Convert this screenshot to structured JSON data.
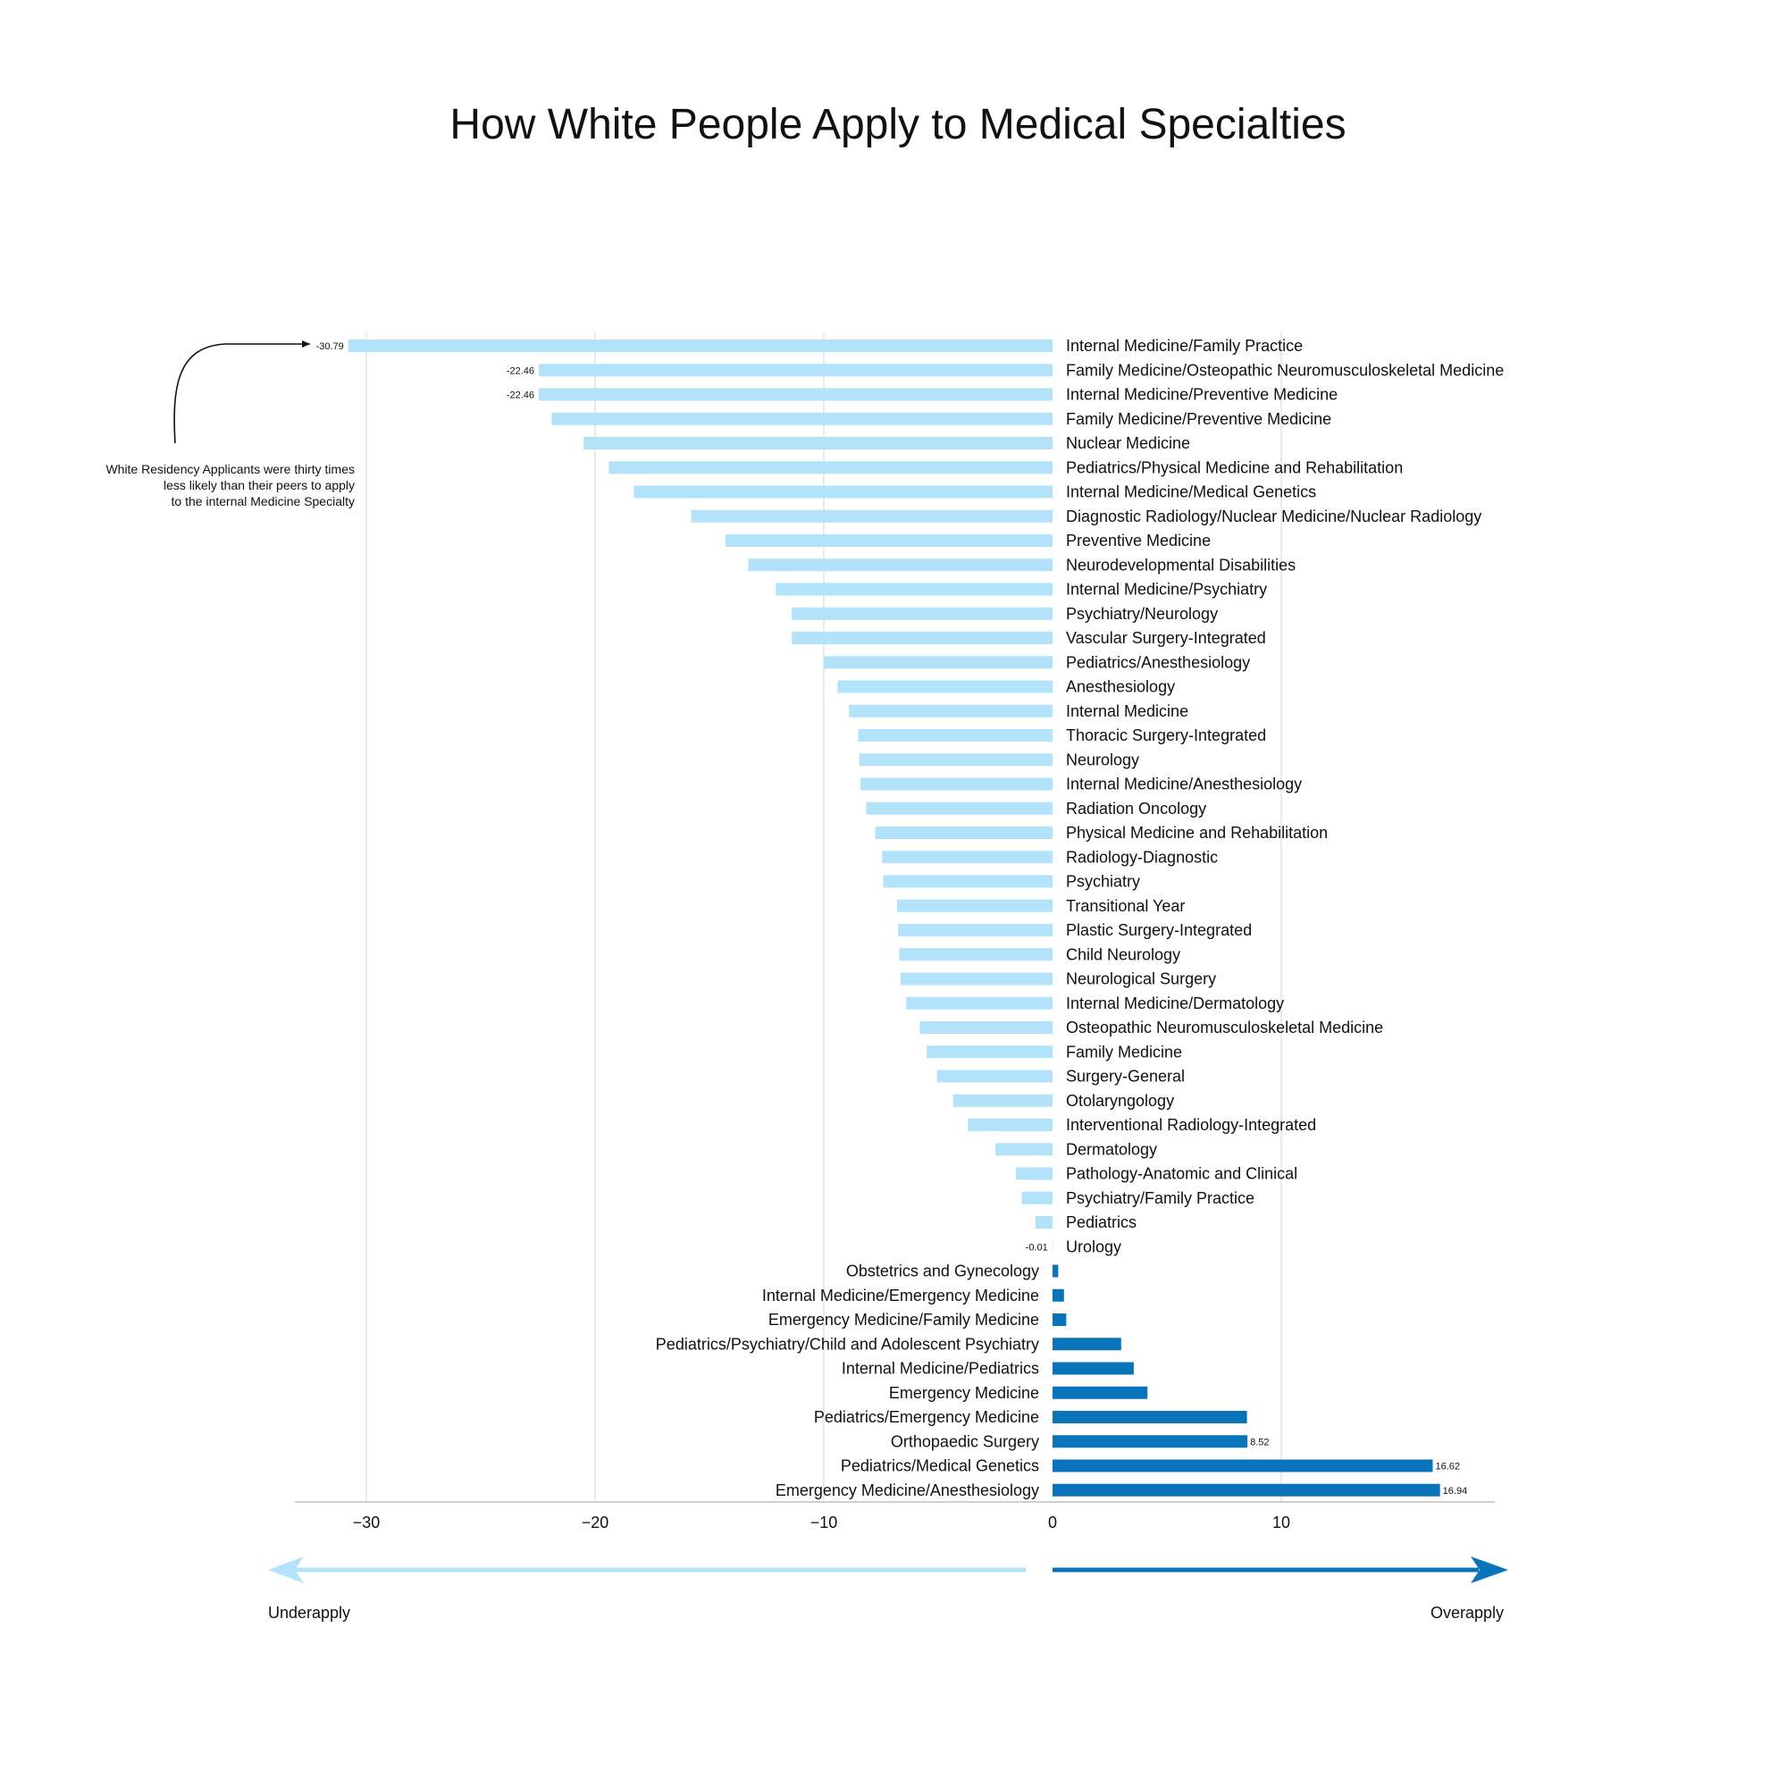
{
  "chart_data": {
    "type": "bar",
    "orientation": "horizontal",
    "title": "How White People Apply to Medical Specialties",
    "xlabel": "",
    "ylabel": "",
    "xlim": [
      -33.2,
      19.3
    ],
    "x_ticks": [
      -30,
      -20,
      -10,
      0,
      10
    ],
    "x_tick_labels": [
      "−30",
      "−20",
      "−10",
      "0",
      "10"
    ],
    "grid": true,
    "legend": "none",
    "colors": {
      "negative": "#b3e3fb",
      "positive": "#0a74bb",
      "axis": "#cfcfcf",
      "grid": "#e3e3e3"
    },
    "categories": [
      "Internal Medicine/Family Practice",
      "Family Medicine/Osteopathic Neuromusculoskeletal Medicine",
      "Internal Medicine/Preventive Medicine",
      "Family Medicine/Preventive Medicine",
      "Nuclear Medicine",
      "Pediatrics/Physical Medicine and Rehabilitation",
      "Internal Medicine/Medical Genetics",
      "Diagnostic Radiology/Nuclear Medicine/Nuclear Radiology",
      "Preventive Medicine",
      "Neurodevelopmental Disabilities",
      "Internal Medicine/Psychiatry",
      "Psychiatry/Neurology",
      "Vascular Surgery-Integrated",
      "Pediatrics/Anesthesiology",
      "Anesthesiology",
      "Internal Medicine",
      "Thoracic Surgery-Integrated",
      "Neurology",
      "Internal Medicine/Anesthesiology",
      "Radiation Oncology",
      "Physical Medicine and Rehabilitation",
      "Radiology-Diagnostic",
      "Psychiatry",
      "Transitional Year",
      "Plastic Surgery-Integrated",
      "Child Neurology",
      "Neurological Surgery",
      "Internal Medicine/Dermatology",
      "Osteopathic Neuromusculoskeletal Medicine",
      "Family Medicine",
      "Surgery-General",
      "Otolaryngology",
      "Interventional Radiology-Integrated",
      "Dermatology",
      "Pathology-Anatomic and Clinical",
      "Psychiatry/Family Practice",
      "Pediatrics",
      "Urology",
      "Obstetrics and Gynecology",
      "Internal Medicine/Emergency Medicine",
      "Emergency Medicine/Family Medicine",
      "Pediatrics/Psychiatry/Child and Adolescent Psychiatry",
      "Internal Medicine/Pediatrics",
      "Emergency Medicine",
      "Pediatrics/Emergency Medicine",
      "Orthopaedic Surgery",
      "Pediatrics/Medical Genetics",
      "Emergency Medicine/Anesthesiology"
    ],
    "values": [
      -30.79,
      -22.46,
      -22.46,
      -21.9,
      -20.5,
      -19.4,
      -18.3,
      -15.8,
      -14.3,
      -13.3,
      -12.1,
      -11.4,
      -11.4,
      -10.0,
      -9.4,
      -8.9,
      -8.5,
      -8.45,
      -8.4,
      -8.15,
      -7.75,
      -7.45,
      -7.4,
      -6.8,
      -6.75,
      -6.7,
      -6.65,
      -6.4,
      -5.8,
      -5.5,
      -5.05,
      -4.35,
      -3.7,
      -2.5,
      -1.6,
      -1.35,
      -0.75,
      -0.01,
      0.25,
      0.5,
      0.6,
      3.0,
      3.55,
      4.15,
      8.5,
      8.52,
      16.62,
      16.94
    ],
    "data_labels": [
      {
        "index": 0,
        "text": "-30.79"
      },
      {
        "index": 1,
        "text": "-22.46"
      },
      {
        "index": 2,
        "text": "-22.46"
      },
      {
        "index": 37,
        "text": "-0.01"
      },
      {
        "index": 45,
        "text": "8.52"
      },
      {
        "index": 46,
        "text": "16.62"
      },
      {
        "index": 47,
        "text": "16.94"
      }
    ],
    "annotation": {
      "lines": [
        "White Residency Applicants were thirty times",
        "less likely than their peers to apply",
        "to the internal Medicine Specialty"
      ]
    },
    "direction_labels": {
      "left": "Underapply",
      "right": "Overapply"
    }
  }
}
